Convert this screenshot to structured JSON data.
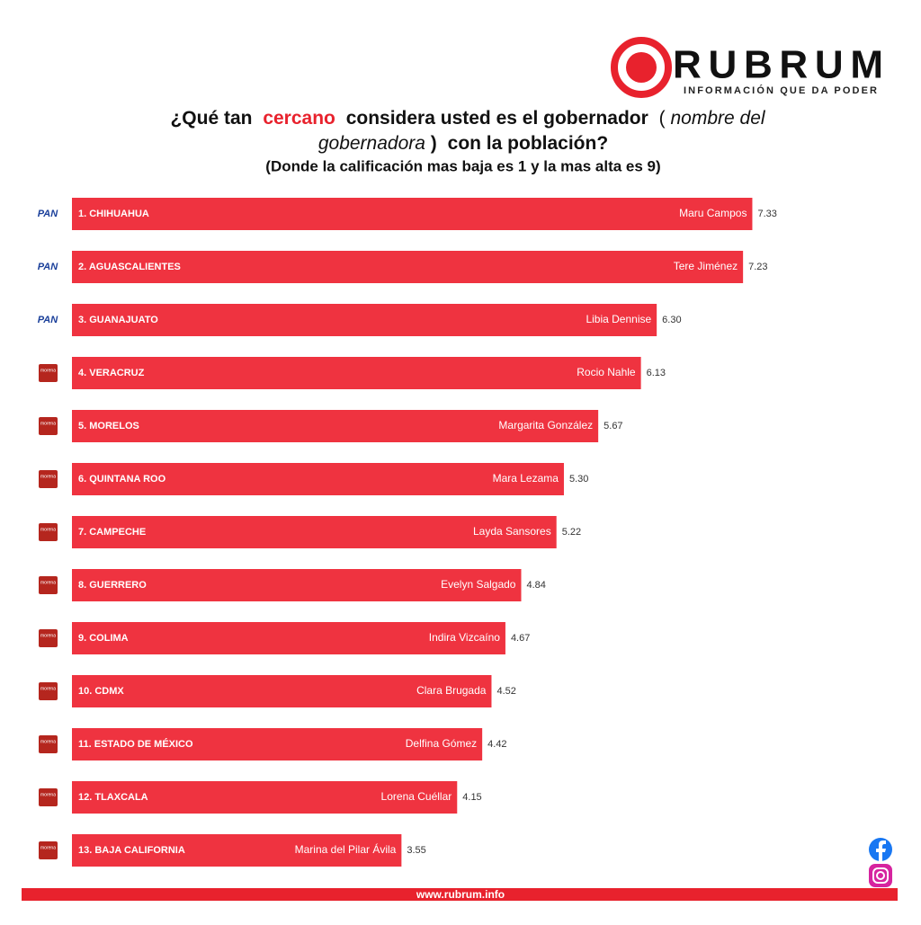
{
  "brand": {
    "name": "RUBRUM",
    "tagline": "INFORMACIÓN QUE DA PODER"
  },
  "chart_data": {
    "type": "bar",
    "orientation": "horizontal",
    "title": [
      "¿Qué tan",
      "cercano",
      "considera usted es el gobernador",
      "(",
      "nombre del",
      "gobernadora",
      ")",
      "con la población?"
    ],
    "subtitle": "(Donde la calificación mas baja es 1 y la mas alta es 9)",
    "categories": [
      "1. CHIHUAHUA",
      "2. AGUASCALIENTES",
      "3. GUANAJUATO",
      "4. VERACRUZ",
      "5. MORELOS",
      "6. QUINTANA ROO",
      "7. CAMPECHE",
      "8. GUERRERO",
      "9. COLIMA",
      "10. CDMX",
      "11. ESTADO DE MÉXICO",
      "12. TLAXCALA",
      "13. BAJA CALIFORNIA"
    ],
    "governors": [
      "Maru Campos",
      "Tere Jiménez",
      "Libia Dennise",
      "Rocio Nahle",
      "Margarita González",
      "Mara Lezama",
      "Layda Sansores",
      "Evelyn Salgado",
      "Indira Vizcaíno",
      "Clara Brugada",
      "Delfina Gómez",
      "Lorena Cuéllar",
      "Marina del Pilar Ávila"
    ],
    "parties": [
      "PAN",
      "PAN",
      "PAN",
      "morena",
      "morena",
      "morena",
      "morena",
      "morena",
      "morena",
      "morena",
      "morena",
      "morena",
      "morena"
    ],
    "values": [
      7.33,
      7.23,
      6.3,
      6.13,
      5.67,
      5.3,
      5.22,
      4.84,
      4.67,
      4.52,
      4.42,
      4.15,
      3.55
    ],
    "value_labels": [
      "7.33",
      "7.23",
      "6.30",
      "6.13",
      "5.67",
      "5.30",
      "5.22",
      "4.84",
      "4.67",
      "4.52",
      "4.42",
      "4.15",
      "3.55"
    ],
    "color": "#ef3340"
  },
  "footer": "www.rubrum.info"
}
